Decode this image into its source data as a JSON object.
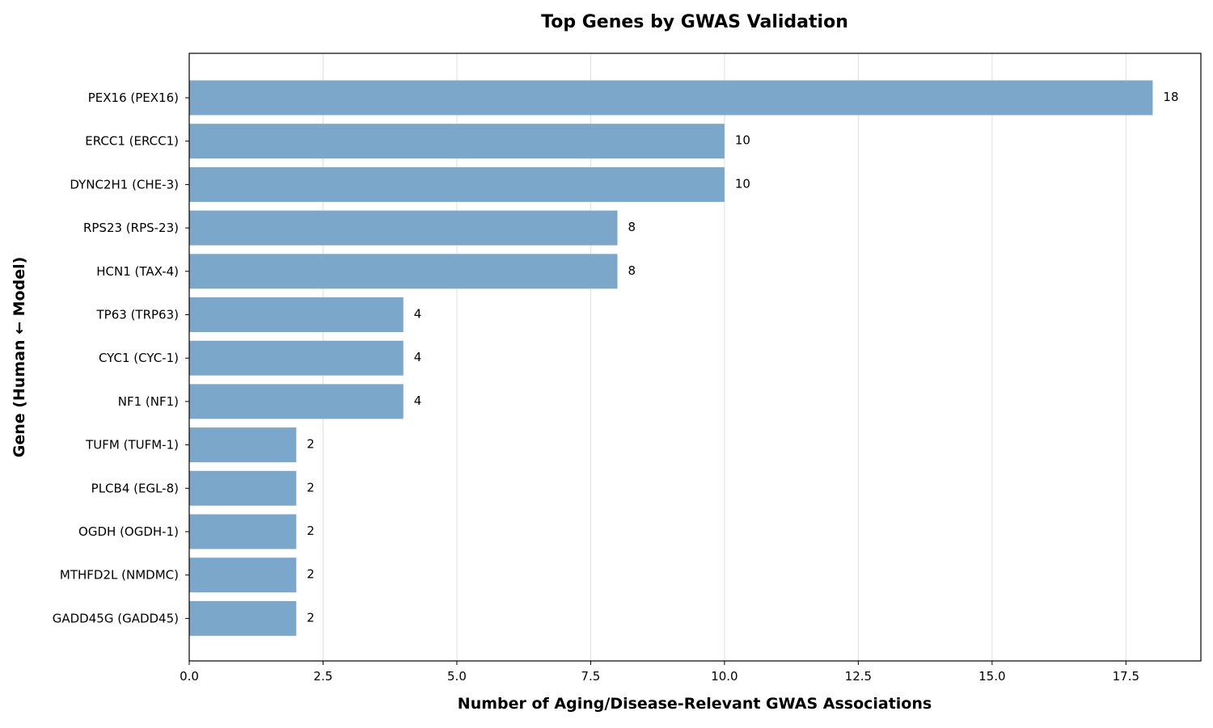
{
  "chart_data": {
    "type": "bar",
    "orientation": "horizontal",
    "title": "Top Genes by GWAS Validation",
    "xlabel": "Number of Aging/Disease-Relevant GWAS Associations",
    "ylabel": "Gene (Human ← Model)",
    "categories": [
      "PEX16 (PEX16)",
      "ERCC1 (ERCC1)",
      "DYNC2H1 (CHE-3)",
      "RPS23 (RPS-23)",
      "HCN1 (TAX-4)",
      "TP63 (TRP63)",
      "CYC1 (CYC-1)",
      "NF1 (NF1)",
      "TUFM (TUFM-1)",
      "PLCB4 (EGL-8)",
      "OGDH (OGDH-1)",
      "MTHFD2L (NMDMC)",
      "GADD45G (GADD45)"
    ],
    "values": [
      18,
      10,
      10,
      8,
      8,
      4,
      4,
      4,
      2,
      2,
      2,
      2,
      2
    ],
    "data_labels": [
      "18",
      "10",
      "10",
      "8",
      "8",
      "4",
      "4",
      "4",
      "2",
      "2",
      "2",
      "2",
      "2"
    ],
    "xlim": [
      0,
      18.9
    ],
    "xticks": [
      0.0,
      2.5,
      5.0,
      7.5,
      10.0,
      12.5,
      15.0,
      17.5
    ],
    "xtick_labels": [
      "0.0",
      "2.5",
      "5.0",
      "7.5",
      "10.0",
      "12.5",
      "15.0",
      "17.5"
    ],
    "grid": "vertical",
    "bar_color": "#7ba7cb",
    "grid_color": "#e0e0e0"
  }
}
